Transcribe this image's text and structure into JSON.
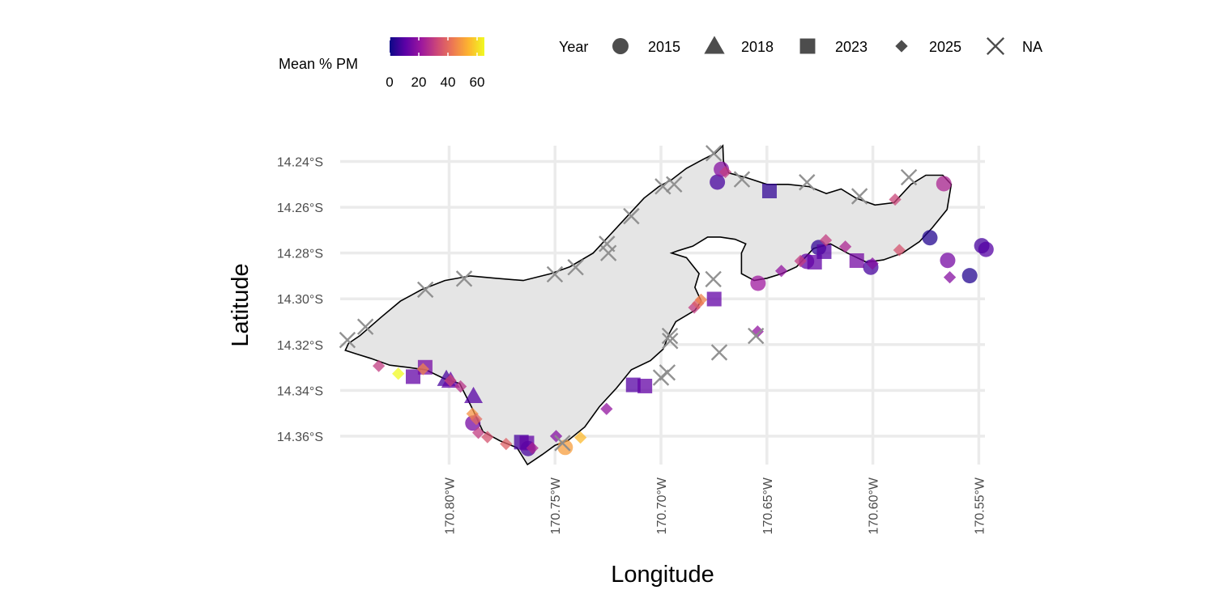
{
  "chart_data": {
    "type": "scatter",
    "title": "",
    "xlabel": "Longitude",
    "ylabel": "Latitude",
    "xlim": [
      -170.8514,
      -170.5471
    ],
    "ylim": [
      -14.3724,
      -14.2331
    ],
    "x_ticks": [
      {
        "value": -170.8,
        "label": "170.80°W"
      },
      {
        "value": -170.75,
        "label": "170.75°W"
      },
      {
        "value": -170.7,
        "label": "170.70°W"
      },
      {
        "value": -170.65,
        "label": "170.65°W"
      },
      {
        "value": -170.6,
        "label": "170.60°W"
      },
      {
        "value": -170.55,
        "label": "170.55°W"
      }
    ],
    "y_ticks": [
      {
        "value": -14.24,
        "label": "14.24°S"
      },
      {
        "value": -14.26,
        "label": "14.26°S"
      },
      {
        "value": -14.28,
        "label": "14.28°S"
      },
      {
        "value": -14.3,
        "label": "14.30°S"
      },
      {
        "value": -14.32,
        "label": "14.32°S"
      },
      {
        "value": -14.34,
        "label": "14.34°S"
      },
      {
        "value": -14.36,
        "label": "14.36°S"
      }
    ],
    "grid": true,
    "legend_placement": "top",
    "color_legend": {
      "title": "Mean % PM",
      "ticks": [
        "0",
        "20",
        "40",
        "60"
      ],
      "range": [
        0,
        65
      ],
      "palette": [
        "#0d0887",
        "#5c01a6",
        "#9c179e",
        "#cc4778",
        "#ed7953",
        "#fdb42f",
        "#f0f921"
      ]
    },
    "shape_legend": {
      "title": "Year",
      "items": [
        {
          "label": "2015",
          "shape": "circle"
        },
        {
          "label": "2018",
          "shape": "triangle"
        },
        {
          "label": "2023",
          "shape": "square"
        },
        {
          "label": "2025",
          "shape": "diamond"
        },
        {
          "label": "NA",
          "shape": "cross"
        }
      ]
    },
    "island_outline": [
      [
        -170.8475,
        -14.3195
      ],
      [
        -170.842,
        -14.316
      ],
      [
        -170.832,
        -14.308
      ],
      [
        -170.823,
        -14.301
      ],
      [
        -170.813,
        -14.296
      ],
      [
        -170.802,
        -14.292
      ],
      [
        -170.79,
        -14.29
      ],
      [
        -170.778,
        -14.291
      ],
      [
        -170.765,
        -14.292
      ],
      [
        -170.752,
        -14.289
      ],
      [
        -170.743,
        -14.286
      ],
      [
        -170.732,
        -14.28
      ],
      [
        -170.724,
        -14.272
      ],
      [
        -170.716,
        -14.264
      ],
      [
        -170.708,
        -14.256
      ],
      [
        -170.701,
        -14.251
      ],
      [
        -170.695,
        -14.248
      ],
      [
        -170.688,
        -14.243
      ],
      [
        -170.68,
        -14.239
      ],
      [
        -170.6745,
        -14.2365
      ],
      [
        -170.6708,
        -14.2331
      ],
      [
        -170.6705,
        -14.24
      ],
      [
        -170.668,
        -14.245
      ],
      [
        -170.66,
        -14.247
      ],
      [
        -170.65,
        -14.25
      ],
      [
        -170.64,
        -14.25
      ],
      [
        -170.63,
        -14.251
      ],
      [
        -170.622,
        -14.254
      ],
      [
        -170.615,
        -14.252
      ],
      [
        -170.608,
        -14.256
      ],
      [
        -170.599,
        -14.259
      ],
      [
        -170.59,
        -14.258
      ],
      [
        -170.582,
        -14.25
      ],
      [
        -170.575,
        -14.246
      ],
      [
        -170.567,
        -14.246
      ],
      [
        -170.563,
        -14.25
      ],
      [
        -170.565,
        -14.261
      ],
      [
        -170.572,
        -14.269
      ],
      [
        -170.578,
        -14.275
      ],
      [
        -170.586,
        -14.28
      ],
      [
        -170.595,
        -14.283
      ],
      [
        -170.603,
        -14.284
      ],
      [
        -170.612,
        -14.28
      ],
      [
        -170.62,
        -14.276
      ],
      [
        -170.628,
        -14.278
      ],
      [
        -170.636,
        -14.286
      ],
      [
        -170.643,
        -14.289
      ],
      [
        -170.65,
        -14.291
      ],
      [
        -170.656,
        -14.292
      ],
      [
        -170.662,
        -14.289
      ],
      [
        -170.662,
        -14.28
      ],
      [
        -170.66,
        -14.276
      ],
      [
        -170.665,
        -14.274
      ],
      [
        -170.672,
        -14.273
      ],
      [
        -170.678,
        -14.273
      ],
      [
        -170.685,
        -14.277
      ],
      [
        -170.692,
        -14.279
      ],
      [
        -170.695,
        -14.28
      ],
      [
        -170.688,
        -14.282
      ],
      [
        -170.682,
        -14.289
      ],
      [
        -170.684,
        -14.295
      ],
      [
        -170.681,
        -14.301
      ],
      [
        -170.684,
        -14.305
      ],
      [
        -170.693,
        -14.31
      ],
      [
        -170.696,
        -14.315
      ],
      [
        -170.699,
        -14.322
      ],
      [
        -170.705,
        -14.327
      ],
      [
        -170.714,
        -14.331
      ],
      [
        -170.721,
        -14.339
      ],
      [
        -170.729,
        -14.347
      ],
      [
        -170.736,
        -14.356
      ],
      [
        -170.744,
        -14.362
      ],
      [
        -170.75,
        -14.364
      ],
      [
        -170.756,
        -14.368
      ],
      [
        -170.763,
        -14.3724
      ],
      [
        -170.768,
        -14.365
      ],
      [
        -170.776,
        -14.362
      ],
      [
        -170.784,
        -14.358
      ],
      [
        -170.789,
        -14.348
      ],
      [
        -170.795,
        -14.337
      ],
      [
        -170.802,
        -14.335
      ],
      [
        -170.811,
        -14.331
      ],
      [
        -170.819,
        -14.33
      ],
      [
        -170.828,
        -14.329
      ],
      [
        -170.837,
        -14.326
      ],
      [
        -170.844,
        -14.324
      ],
      [
        -170.849,
        -14.3225
      ]
    ],
    "series": [
      {
        "name": "2015",
        "shape": "circle",
        "points": [
          [
            -170.6734,
            -14.249,
            8
          ],
          [
            -170.6715,
            -14.2434,
            18
          ],
          [
            -170.6542,
            -14.2932,
            22
          ],
          [
            -170.6256,
            -14.2776,
            5
          ],
          [
            -170.601,
            -14.2862,
            8
          ],
          [
            -170.5731,
            -14.2733,
            3
          ],
          [
            -170.5665,
            -14.2497,
            25
          ],
          [
            -170.5647,
            -14.2832,
            15
          ],
          [
            -170.5543,
            -14.2899,
            3
          ],
          [
            -170.5486,
            -14.2768,
            8
          ],
          [
            -170.5466,
            -14.2784,
            10
          ],
          [
            -170.7888,
            -14.3543,
            15
          ],
          [
            -170.7452,
            -14.3649,
            50
          ],
          [
            -170.7627,
            -14.3654,
            8
          ],
          [
            -170.6313,
            -14.2836,
            12
          ]
        ]
      },
      {
        "name": "2018",
        "shape": "triangle",
        "points": [
          [
            -170.8013,
            -14.335,
            8
          ],
          [
            -170.7885,
            -14.3425,
            10
          ],
          [
            -170.7993,
            -14.3358,
            12
          ]
        ]
      },
      {
        "name": "2023",
        "shape": "square",
        "points": [
          [
            -170.817,
            -14.334,
            12
          ],
          [
            -170.8113,
            -14.3299,
            15
          ],
          [
            -170.7659,
            -14.3626,
            8
          ],
          [
            -170.7633,
            -14.363,
            12
          ],
          [
            -170.7131,
            -14.3376,
            10
          ],
          [
            -170.7076,
            -14.3381,
            12
          ],
          [
            -170.6749,
            -14.3001,
            12
          ],
          [
            -170.6488,
            -14.2529,
            5
          ],
          [
            -170.6275,
            -14.284,
            12
          ],
          [
            -170.623,
            -14.2794,
            10
          ],
          [
            -170.6076,
            -14.2833,
            15
          ]
        ]
      },
      {
        "name": "2025",
        "shape": "diamond",
        "points": [
          [
            -170.8332,
            -14.3293,
            30
          ],
          [
            -170.824,
            -14.3327,
            65
          ],
          [
            -170.8123,
            -14.3307,
            45
          ],
          [
            -170.7994,
            -14.3357,
            32
          ],
          [
            -170.7946,
            -14.3383,
            28
          ],
          [
            -170.789,
            -14.3502,
            48
          ],
          [
            -170.7872,
            -14.3525,
            40
          ],
          [
            -170.7862,
            -14.3585,
            30
          ],
          [
            -170.7819,
            -14.3604,
            35
          ],
          [
            -170.7731,
            -14.3634,
            38
          ],
          [
            -170.7607,
            -14.3652,
            25
          ],
          [
            -170.7495,
            -14.36,
            18
          ],
          [
            -170.738,
            -14.3606,
            55
          ],
          [
            -170.7257,
            -14.3481,
            20
          ],
          [
            -170.6843,
            -14.3038,
            30
          ],
          [
            -170.6825,
            -14.302,
            38
          ],
          [
            -170.6811,
            -14.3004,
            45
          ],
          [
            -170.6544,
            -14.3143,
            20
          ],
          [
            -170.6696,
            -14.2446,
            30
          ],
          [
            -170.6432,
            -14.2878,
            20
          ],
          [
            -170.6342,
            -14.2835,
            30
          ],
          [
            -170.6222,
            -14.2744,
            30
          ],
          [
            -170.613,
            -14.2772,
            25
          ],
          [
            -170.6002,
            -14.2846,
            18
          ],
          [
            -170.5895,
            -14.2566,
            32
          ],
          [
            -170.5875,
            -14.2787,
            35
          ],
          [
            -170.5637,
            -14.2906,
            18
          ]
        ]
      },
      {
        "name": "NA",
        "shape": "cross",
        "points": [
          [
            -170.848,
            -14.318
          ],
          [
            -170.8395,
            -14.3122
          ],
          [
            -170.8112,
            -14.296
          ],
          [
            -170.7929,
            -14.2912
          ],
          [
            -170.7501,
            -14.2893
          ],
          [
            -170.7403,
            -14.2862
          ],
          [
            -170.7255,
            -14.276
          ],
          [
            -170.7248,
            -14.28
          ],
          [
            -170.714,
            -14.2639
          ],
          [
            -170.6991,
            -14.2509
          ],
          [
            -170.6938,
            -14.25
          ],
          [
            -170.6751,
            -14.2364
          ],
          [
            -170.6618,
            -14.2478
          ],
          [
            -170.6311,
            -14.2491
          ],
          [
            -170.6063,
            -14.2552
          ],
          [
            -170.583,
            -14.2469
          ],
          [
            -170.6753,
            -14.2914
          ],
          [
            -170.6957,
            -14.3184
          ],
          [
            -170.6958,
            -14.3162
          ],
          [
            -170.7,
            -14.3344
          ],
          [
            -170.697,
            -14.3322
          ],
          [
            -170.6725,
            -14.3234
          ],
          [
            -170.6552,
            -14.3162
          ],
          [
            -170.7465,
            -14.363
          ]
        ]
      }
    ]
  }
}
